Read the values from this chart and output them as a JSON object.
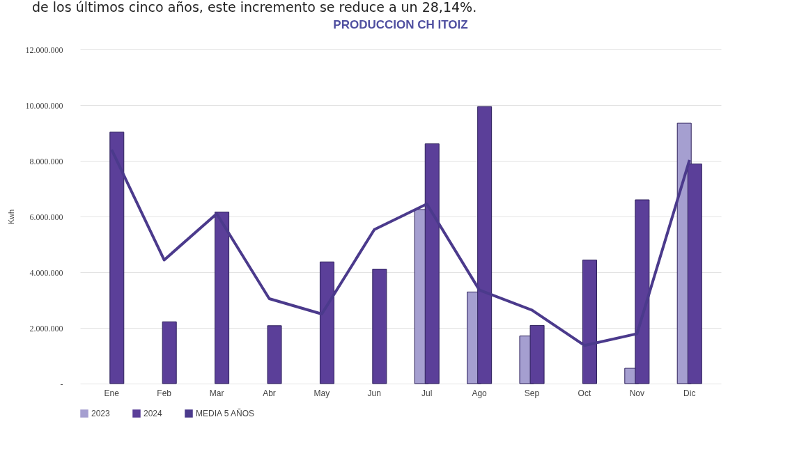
{
  "chart_data": {
    "type": "bar",
    "title": "PRODUCCION CH ITOIZ",
    "ylabel": "Kwh",
    "annotations": [
      "de los últimos cinco años, este incremento se reduce a un 28,14%."
    ],
    "categories": [
      "Ene",
      "Feb",
      "Mar",
      "Abr",
      "May",
      "Jun",
      "Jul",
      "Ago",
      "Sep",
      "Oct",
      "Nov",
      "Dic"
    ],
    "series": [
      {
        "name": "2023",
        "color": "#a59fd0",
        "values": [
          0,
          0,
          0,
          0,
          0,
          0,
          6250000,
          3290000,
          1710000,
          0,
          550000,
          9350000
        ]
      },
      {
        "name": "2024",
        "color": "#5b3f99",
        "values": [
          9030000,
          2220000,
          6160000,
          2080000,
          4370000,
          4110000,
          8610000,
          9950000,
          2090000,
          4440000,
          6600000,
          7890000
        ]
      },
      {
        "name": "MEDIA 5 AÑOS",
        "type": "line",
        "color": "#4b3a8c",
        "values": [
          8400000,
          4440000,
          6100000,
          3050000,
          2500000,
          5530000,
          6450000,
          3360000,
          2640000,
          1370000,
          1790000,
          8030000
        ]
      }
    ],
    "ylim": [
      0,
      12000000
    ],
    "yticks": [
      {
        "value": 0,
        "label": "-"
      },
      {
        "value": 2000000,
        "label": "2.000.000"
      },
      {
        "value": 4000000,
        "label": "4.000.000"
      },
      {
        "value": 6000000,
        "label": "6.000.000"
      },
      {
        "value": 8000000,
        "label": "8.000.000"
      },
      {
        "value": 10000000,
        "label": "10.000.000"
      },
      {
        "value": 12000000,
        "label": "12.000.000"
      }
    ],
    "grid": "y",
    "legend": "bottom",
    "line_style": "solid"
  }
}
